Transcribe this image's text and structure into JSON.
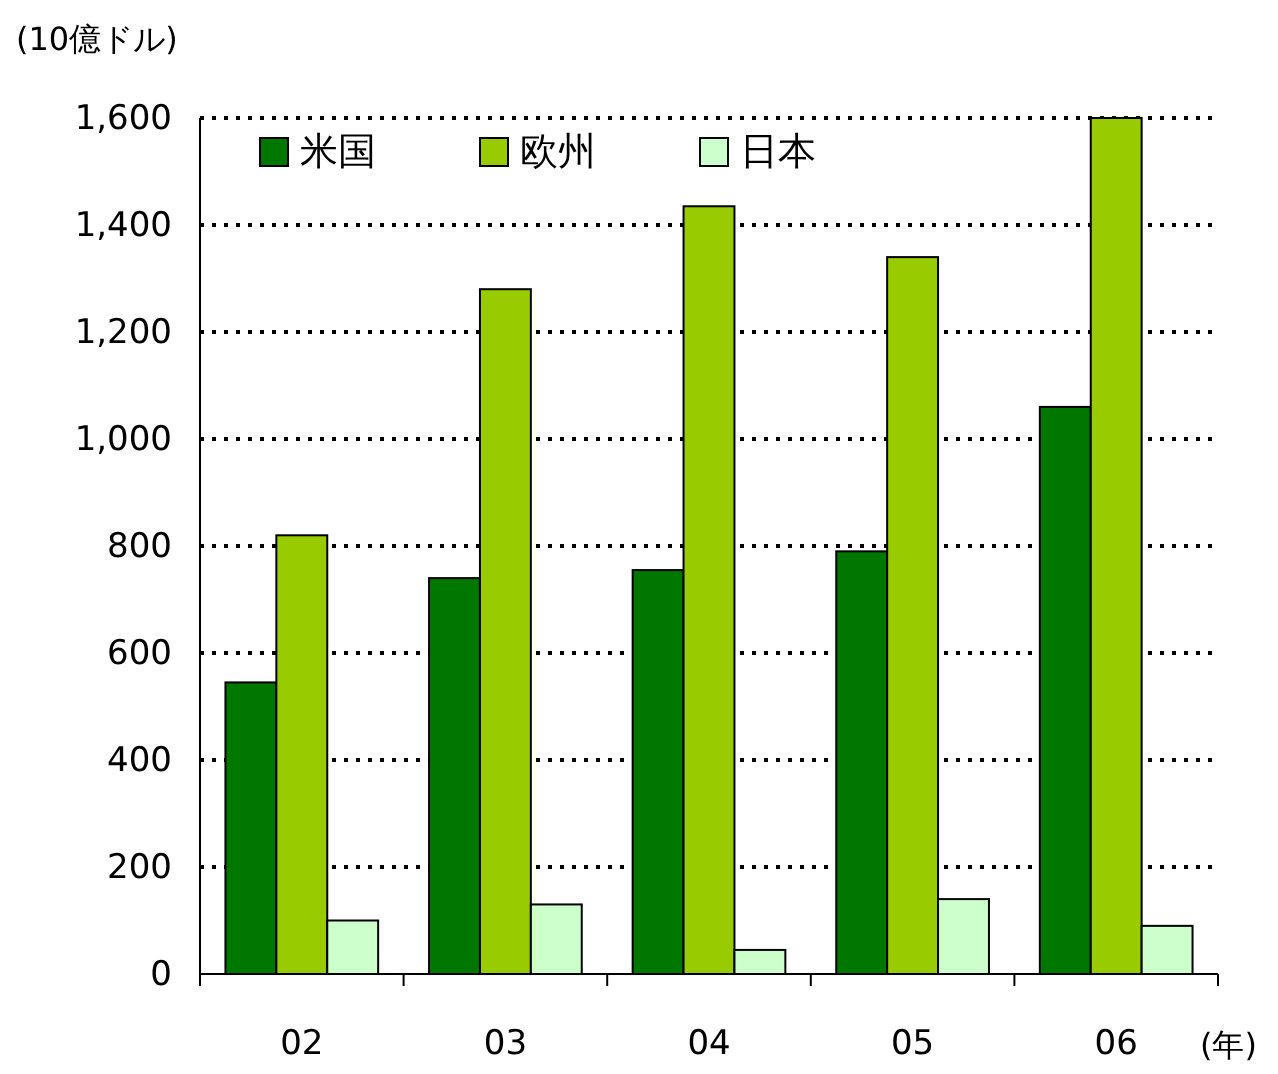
{
  "chart_data": {
    "type": "bar",
    "ylabel": "(10億ドル)",
    "xlabel": "(年)",
    "categories": [
      "02",
      "03",
      "04",
      "05",
      "06"
    ],
    "series": [
      {
        "name": "米国",
        "color": "#007800",
        "values": [
          545,
          740,
          755,
          790,
          1060
        ]
      },
      {
        "name": "欧州",
        "color": "#99cc00",
        "values": [
          820,
          1280,
          1435,
          1340,
          1600
        ]
      },
      {
        "name": "日本",
        "color": "#ccffcc",
        "values": [
          100,
          130,
          45,
          140,
          90
        ]
      }
    ],
    "ylim": [
      0,
      1600
    ],
    "yticks": [
      0,
      200,
      400,
      600,
      800,
      {
        "value": 1000,
        "label": "1,000"
      },
      {
        "value": 1200,
        "label": "1,200"
      },
      {
        "value": 1400,
        "label": "1,400"
      },
      {
        "value": 1600,
        "label": "1,600"
      }
    ],
    "grid": "y",
    "legend": "top left"
  }
}
